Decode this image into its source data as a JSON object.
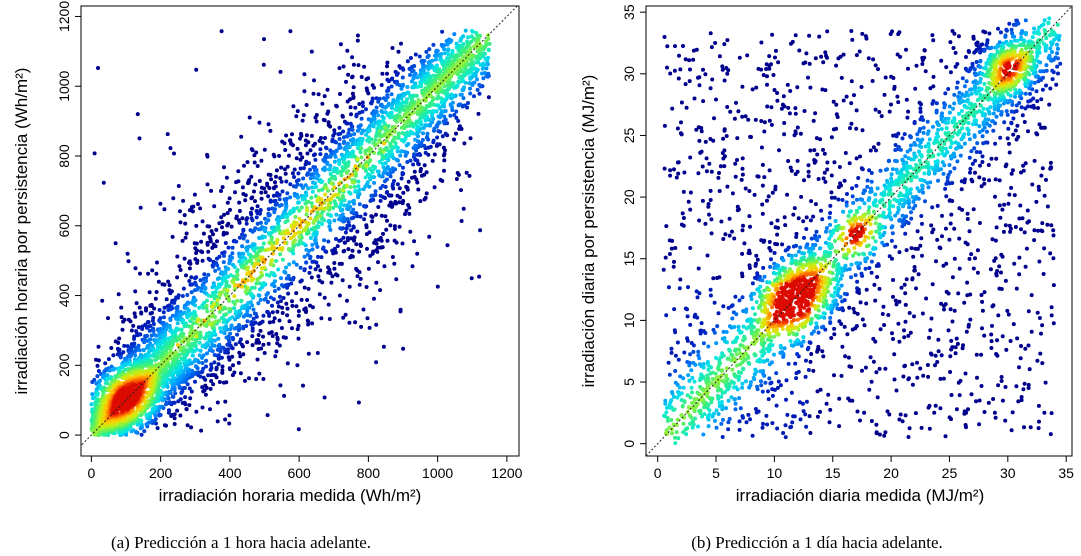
{
  "chart_data": [
    {
      "type": "scatter",
      "subtitle": "(a) Predicción a 1 hora hacia adelante.",
      "xlabel": "irradiación horaria medida (Wh/m²)",
      "ylabel": "irradiación horaria por persistencia (Wh/m²)",
      "xlim": [
        -30,
        1235
      ],
      "ylim": [
        -60,
        1230
      ],
      "xticks": [
        0,
        200,
        400,
        600,
        800,
        1000,
        1200
      ],
      "yticks": [
        0,
        200,
        400,
        600,
        800,
        1000,
        1200
      ],
      "reference_line": "y = x, dotted",
      "colormap": "density: blue, cyan, green, yellow, red",
      "density_peak": [
        100,
        110
      ],
      "grid": false,
      "legend": "none"
    },
    {
      "type": "scatter",
      "subtitle": "(b) Predicción a 1 día hacia adelante.",
      "xlabel": "irradiación diaria medida (MJ/m²)",
      "ylabel": "irradiación diaria por persistencia (MJ/m²)",
      "xlim": [
        -1,
        35.5
      ],
      "ylim": [
        -1,
        35.5
      ],
      "xticks": [
        0,
        5,
        10,
        15,
        20,
        25,
        30,
        35
      ],
      "yticks": [
        0,
        5,
        10,
        15,
        20,
        25,
        30,
        35
      ],
      "reference_line": "y = x, dotted",
      "colormap": "density: blue, cyan, green, yellow, red",
      "density_peaks": [
        [
          12,
          12
        ],
        [
          30,
          30.5
        ],
        [
          17,
          17
        ]
      ],
      "grid": false,
      "legend": "none"
    }
  ]
}
